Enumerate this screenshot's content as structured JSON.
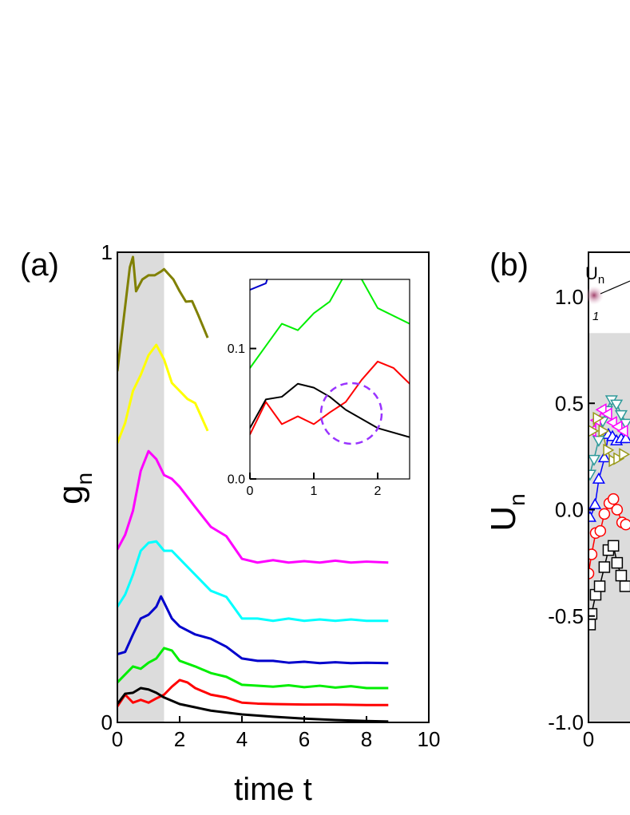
{
  "chart_data": [
    {
      "type": "line",
      "panel": "(a)",
      "xlabel": "time t",
      "ylabel": {
        "text": "g",
        "subscript": "n"
      },
      "xlim": [
        0,
        10
      ],
      "ylim": [
        0,
        1
      ],
      "xticks": [
        0,
        2,
        4,
        6,
        8,
        10
      ],
      "yticks": [
        0,
        1
      ],
      "shade_x": [
        0,
        1.5
      ],
      "inset": {
        "xlim": [
          0,
          2.5
        ],
        "ylim": [
          0,
          0.153
        ],
        "xticks": [
          0,
          1,
          2
        ],
        "yticks": [
          {
            "value": 0,
            "label": "0.0"
          },
          0.1
        ]
      },
      "series": [
        {
          "color": "#808000",
          "x": [
            0,
            0.2,
            0.4,
            0.5,
            0.6,
            0.8,
            1,
            1.2,
            1.4,
            1.5,
            1.8,
            2,
            2.2,
            2.4,
            2.6,
            2.9
          ],
          "values": [
            0.747,
            0.857,
            0.968,
            0.99,
            0.917,
            0.942,
            0.951,
            0.951,
            0.959,
            0.964,
            0.942,
            0.917,
            0.895,
            0.896,
            0.866,
            0.818
          ]
        },
        {
          "color": "#ffff00",
          "x": [
            0,
            0.25,
            0.5,
            0.75,
            1,
            1.25,
            1.5,
            1.75,
            2,
            2.25,
            2.5,
            2.9
          ],
          "values": [
            0.594,
            0.637,
            0.705,
            0.739,
            0.781,
            0.803,
            0.772,
            0.722,
            0.705,
            0.688,
            0.679,
            0.62
          ]
        },
        {
          "color": "#ff00ff",
          "x": [
            0,
            0.25,
            0.5,
            0.75,
            1,
            1.25,
            1.5,
            1.75,
            2,
            2.5,
            3,
            3.5,
            4,
            4.5,
            5,
            5.5,
            6,
            6.5,
            7,
            7.5,
            8,
            8.7
          ],
          "values": [
            0.368,
            0.399,
            0.45,
            0.535,
            0.577,
            0.56,
            0.526,
            0.518,
            0.501,
            0.458,
            0.416,
            0.396,
            0.348,
            0.34,
            0.345,
            0.34,
            0.343,
            0.34,
            0.344,
            0.34,
            0.342,
            0.34
          ]
        },
        {
          "color": "#00ffff",
          "x": [
            0,
            0.25,
            0.5,
            0.75,
            1,
            1.25,
            1.5,
            1.75,
            2,
            2.5,
            3,
            3.5,
            4,
            4.5,
            5,
            5.5,
            6,
            6.5,
            7,
            7.5,
            8,
            8.7
          ],
          "values": [
            0.246,
            0.272,
            0.314,
            0.365,
            0.382,
            0.385,
            0.365,
            0.365,
            0.348,
            0.314,
            0.28,
            0.267,
            0.221,
            0.221,
            0.216,
            0.221,
            0.216,
            0.219,
            0.216,
            0.219,
            0.216,
            0.216
          ]
        },
        {
          "color": "#0000cc",
          "x": [
            0,
            0.25,
            0.5,
            0.75,
            1,
            1.25,
            1.4,
            1.5,
            1.75,
            2,
            2.5,
            3,
            3.5,
            4,
            4.5,
            5,
            5.5,
            6,
            6.5,
            7,
            7.5,
            8,
            8.7
          ],
          "values": [
            0.145,
            0.15,
            0.187,
            0.221,
            0.229,
            0.246,
            0.268,
            0.255,
            0.221,
            0.204,
            0.187,
            0.178,
            0.161,
            0.136,
            0.131,
            0.131,
            0.127,
            0.129,
            0.126,
            0.128,
            0.126,
            0.127,
            0.126
          ]
        },
        {
          "color": "#00ee00",
          "x": [
            0,
            0.25,
            0.5,
            0.75,
            1,
            1.25,
            1.5,
            1.75,
            2,
            2.5,
            3,
            3.5,
            4,
            4.5,
            5,
            5.5,
            6,
            6.5,
            7,
            7.5,
            8,
            8.7
          ],
          "values": [
            0.085,
            0.102,
            0.119,
            0.114,
            0.127,
            0.136,
            0.158,
            0.153,
            0.131,
            0.119,
            0.105,
            0.097,
            0.08,
            0.078,
            0.076,
            0.079,
            0.075,
            0.078,
            0.074,
            0.077,
            0.073,
            0.073
          ]
        },
        {
          "color": "#ff0000",
          "x": [
            0,
            0.25,
            0.5,
            0.75,
            1,
            1.25,
            1.5,
            1.75,
            2,
            2.25,
            2.5,
            3,
            3.5,
            4,
            4.5,
            5,
            6,
            7,
            8,
            8.7
          ],
          "values": [
            0.034,
            0.059,
            0.042,
            0.048,
            0.042,
            0.051,
            0.059,
            0.076,
            0.09,
            0.085,
            0.073,
            0.059,
            0.053,
            0.042,
            0.04,
            0.039,
            0.038,
            0.038,
            0.037,
            0.037
          ]
        },
        {
          "color": "#000000",
          "x": [
            0,
            0.25,
            0.5,
            0.75,
            1,
            1.25,
            1.5,
            2,
            2.5,
            3,
            4,
            5,
            6,
            7,
            8,
            8.7
          ],
          "values": [
            0.039,
            0.061,
            0.063,
            0.073,
            0.07,
            0.063,
            0.053,
            0.039,
            0.032,
            0.025,
            0.017,
            0.012,
            0.008,
            0.005,
            0.003,
            0.002
          ]
        }
      ]
    },
    {
      "type": "scatter",
      "panel": "(b)",
      "ylabel": {
        "text": "U",
        "subscript": "n"
      },
      "annotations": [
        {
          "text": "U",
          "subscript": "n"
        },
        "1"
      ],
      "xlim": [
        0,
        10
      ],
      "ylim": [
        -1,
        1.21
      ],
      "xticks": [
        0
      ],
      "yticks": [
        {
          "value": 1,
          "label": "1.0"
        },
        {
          "value": 0.5,
          "label": "0.5"
        },
        {
          "value": 0,
          "label": "0.0"
        },
        {
          "value": -0.5,
          "label": "-0.5"
        },
        {
          "value": -1,
          "label": "-1.0"
        }
      ],
      "shade_y": [
        -1,
        0.83
      ],
      "series": [
        {
          "color": "#000000",
          "marker": "square",
          "x": [
            0.05,
            0.1,
            0.23,
            0.36,
            0.51,
            0.64,
            0.8,
            0.92,
            1.05,
            1.18
          ],
          "values": [
            -0.54,
            -0.49,
            -0.4,
            -0.36,
            -0.27,
            -0.19,
            -0.17,
            -0.25,
            -0.31,
            -0.36
          ]
        },
        {
          "color": "#ff0000",
          "marker": "circle",
          "x": [
            0,
            0.1,
            0.23,
            0.38,
            0.51,
            0.67,
            0.8,
            0.92,
            1.08,
            1.2
          ],
          "values": [
            -0.3,
            -0.21,
            -0.11,
            -0.1,
            -0.02,
            0.03,
            0.05,
            0,
            -0.06,
            -0.07
          ]
        },
        {
          "color": "#0000ff",
          "marker": "triangle-up",
          "x": [
            0.05,
            0.21,
            0.33,
            0.51,
            0.64,
            0.77,
            0.9,
            1.05,
            1.2
          ],
          "values": [
            -0.04,
            0.02,
            0.14,
            0.24,
            0.35,
            0.34,
            0.32,
            0.33,
            0.33
          ]
        },
        {
          "color": "#2e9a9a",
          "marker": "triangle-down",
          "x": [
            0.05,
            0.18,
            0.33,
            0.46,
            0.59,
            0.74,
            0.9,
            1.05,
            1.2
          ],
          "values": [
            0.17,
            0.24,
            0.33,
            0.42,
            0.47,
            0.52,
            0.5,
            0.45,
            0.41
          ]
        },
        {
          "color": "#ff00ff",
          "marker": "triangle-left",
          "x": [
            0.13,
            0.28,
            0.46,
            0.64,
            0.8,
            0.97,
            1.15
          ],
          "values": [
            0.37,
            0.42,
            0.47,
            0.45,
            0.41,
            0.39,
            0.37
          ]
        },
        {
          "color": "#9a9a1a",
          "marker": "triangle-right",
          "x": [
            0.1,
            0.26,
            0.44,
            0.59,
            0.77,
            0.92,
            1.1
          ],
          "values": [
            0.37,
            0.43,
            0.37,
            0.28,
            0.23,
            0.24,
            0.26
          ]
        }
      ]
    }
  ]
}
